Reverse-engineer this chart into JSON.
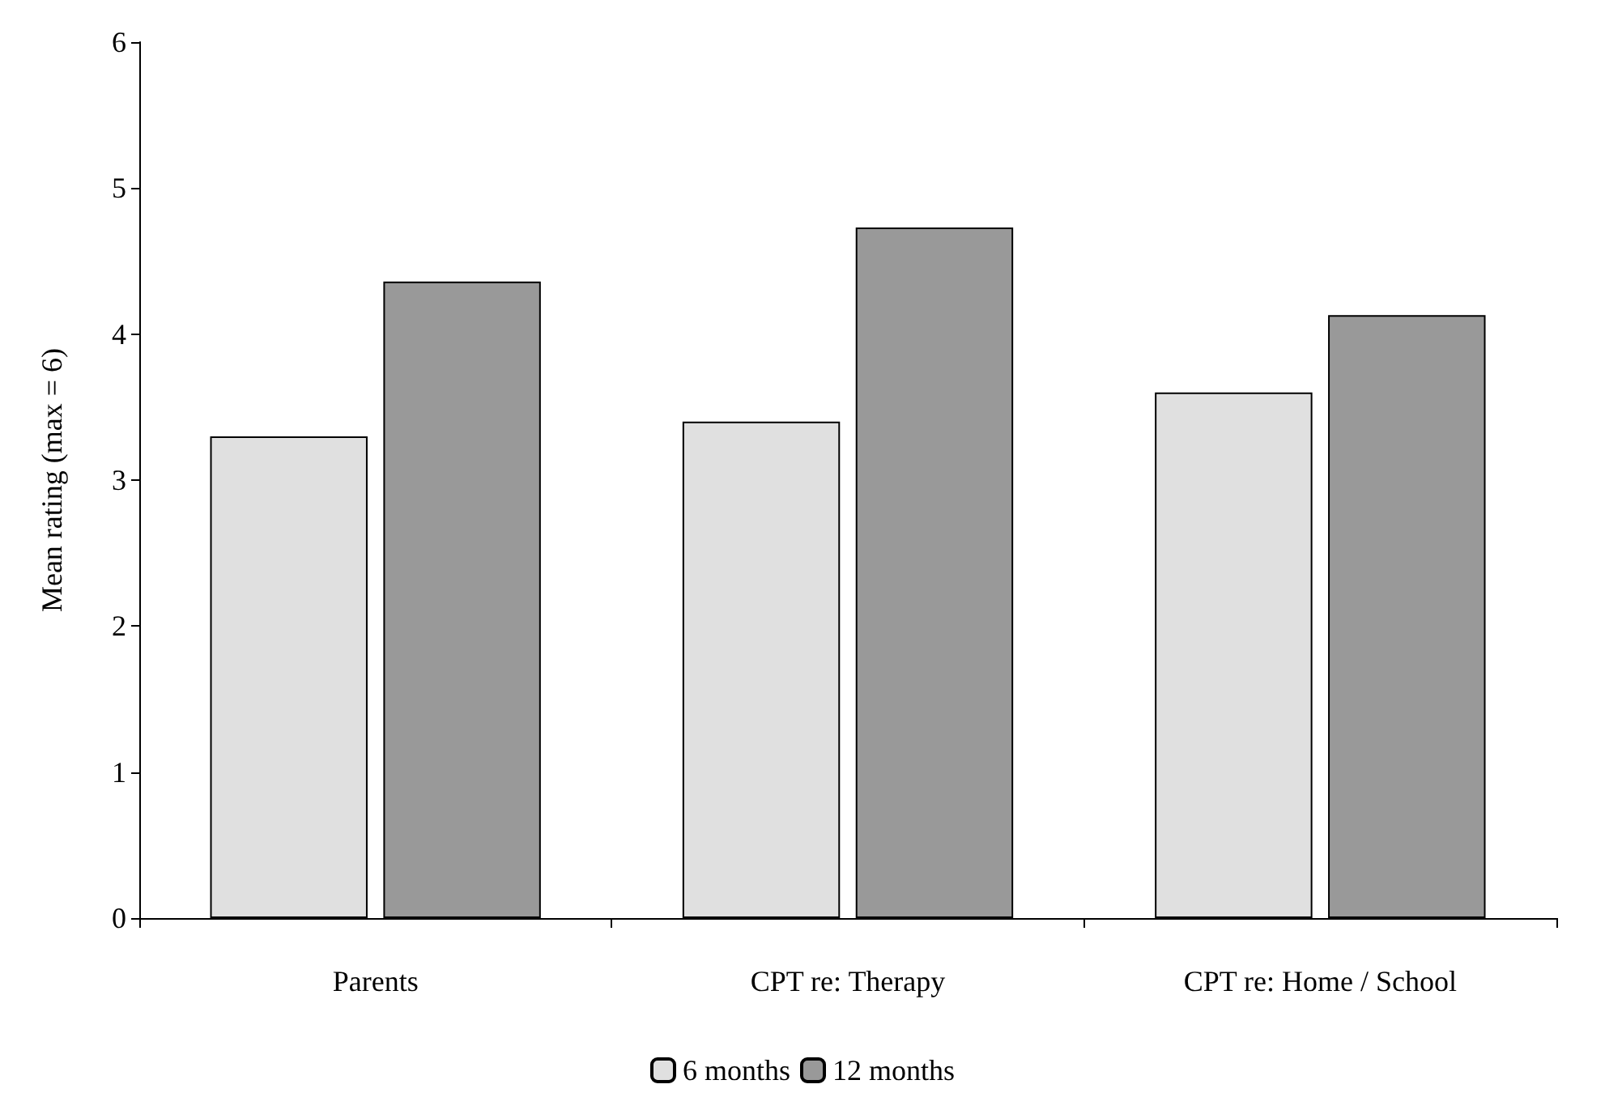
{
  "chart_data": {
    "type": "bar",
    "ylabel": "Mean rating (max = 6)",
    "categories": [
      "Parents",
      "CPT re: Therapy",
      "CPT re: Home / School"
    ],
    "series": [
      {
        "name": "6 months",
        "color": "#e0e0e0",
        "values": [
          3.3,
          3.4,
          3.6
        ]
      },
      {
        "name": "12 months",
        "color": "#999999",
        "values": [
          4.36,
          4.73,
          4.13
        ]
      }
    ],
    "ylim": [
      0,
      6
    ],
    "yticks": [
      0,
      1,
      2,
      3,
      4,
      5,
      6
    ],
    "grid": false,
    "legend": "bottom"
  }
}
